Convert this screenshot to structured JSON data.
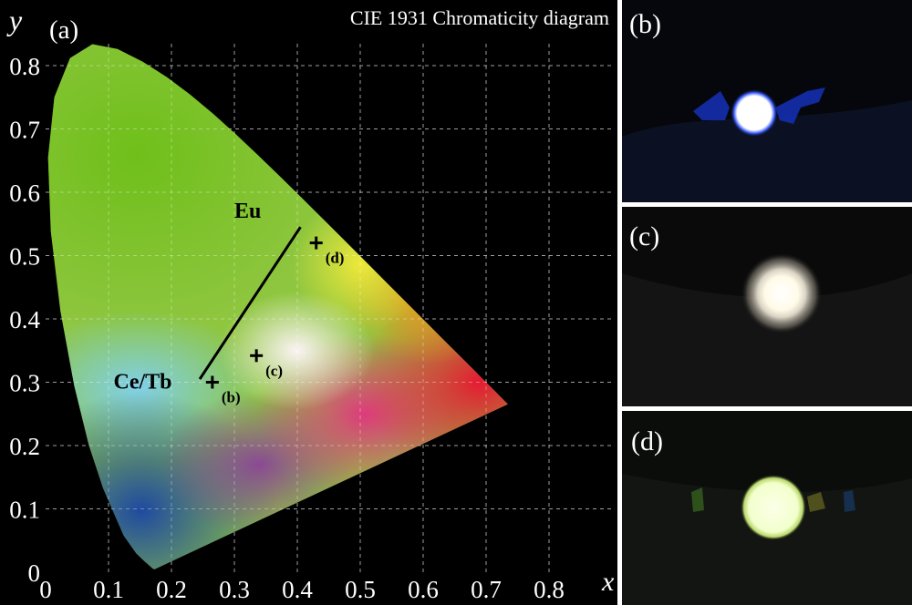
{
  "panels": {
    "a": {
      "label": "(a)"
    },
    "b": {
      "label": "(b)"
    },
    "c": {
      "label": "(c)"
    },
    "d": {
      "label": "(d)"
    }
  },
  "chart_data": {
    "type": "scatter",
    "title": "CIE 1931 Chromaticity diagram",
    "xlabel": "x",
    "ylabel": "y",
    "xlim": [
      0,
      0.8
    ],
    "ylim": [
      0,
      0.8
    ],
    "grid": true,
    "x_ticks": [
      "0",
      "0.1",
      "0.2",
      "0.3",
      "0.4",
      "0.5",
      "0.6",
      "0.7",
      "0.8"
    ],
    "y_ticks": [
      "0",
      "0.1",
      "0.2",
      "0.3",
      "0.4",
      "0.5",
      "0.6",
      "0.7",
      "0.8"
    ],
    "locus": [
      [
        0.1741,
        0.005
      ],
      [
        0.1738,
        0.0049
      ],
      [
        0.1736,
        0.0049
      ],
      [
        0.173,
        0.0048
      ],
      [
        0.1726,
        0.0048
      ],
      [
        0.1714,
        0.0051
      ],
      [
        0.1689,
        0.0069
      ],
      [
        0.1644,
        0.0109
      ],
      [
        0.1566,
        0.0177
      ],
      [
        0.144,
        0.0297
      ],
      [
        0.1241,
        0.0578
      ],
      [
        0.0913,
        0.1327
      ],
      [
        0.0687,
        0.2007
      ],
      [
        0.0454,
        0.295
      ],
      [
        0.0235,
        0.4127
      ],
      [
        0.0082,
        0.5384
      ],
      [
        0.0039,
        0.6548
      ],
      [
        0.0139,
        0.7502
      ],
      [
        0.0389,
        0.812
      ],
      [
        0.0743,
        0.8338
      ],
      [
        0.1142,
        0.8262
      ],
      [
        0.1547,
        0.8059
      ],
      [
        0.1929,
        0.7816
      ],
      [
        0.2296,
        0.7543
      ],
      [
        0.2658,
        0.7243
      ],
      [
        0.3016,
        0.6923
      ],
      [
        0.3373,
        0.6589
      ],
      [
        0.3731,
        0.6245
      ],
      [
        0.4087,
        0.5896
      ],
      [
        0.4441,
        0.5547
      ],
      [
        0.4788,
        0.5202
      ],
      [
        0.5125,
        0.4866
      ],
      [
        0.5448,
        0.4544
      ],
      [
        0.5752,
        0.4242
      ],
      [
        0.6029,
        0.3965
      ],
      [
        0.627,
        0.3725
      ],
      [
        0.6482,
        0.3514
      ],
      [
        0.6658,
        0.334
      ],
      [
        0.6801,
        0.3197
      ],
      [
        0.6915,
        0.3083
      ],
      [
        0.7006,
        0.2993
      ],
      [
        0.7079,
        0.292
      ],
      [
        0.714,
        0.2859
      ],
      [
        0.719,
        0.2809
      ],
      [
        0.723,
        0.277
      ],
      [
        0.726,
        0.274
      ],
      [
        0.7347,
        0.2653
      ]
    ],
    "points": [
      {
        "name": "(b)",
        "x": 0.265,
        "y": 0.3
      },
      {
        "name": "(c)",
        "x": 0.335,
        "y": 0.342
      },
      {
        "name": "(d)",
        "x": 0.43,
        "y": 0.52
      }
    ],
    "line": {
      "from": [
        0.245,
        0.305
      ],
      "to": [
        0.405,
        0.545
      ]
    },
    "annotations": [
      {
        "text": "Eu",
        "x": 0.3,
        "y": 0.56
      },
      {
        "text": "Ce/Tb",
        "x": 0.108,
        "y": 0.29
      }
    ]
  }
}
